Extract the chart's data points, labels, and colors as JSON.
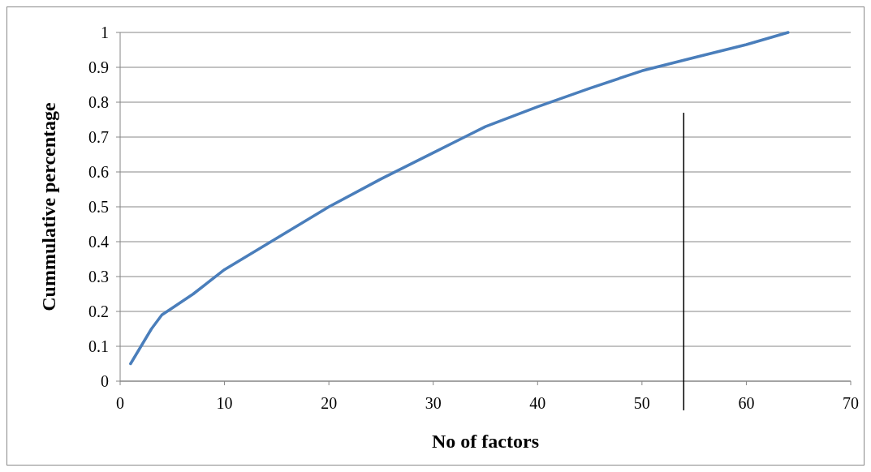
{
  "chart_data": {
    "type": "line",
    "xlabel": "No of factors",
    "ylabel": "Cummulative percentage",
    "series": [
      {
        "color": "#4a7ebb",
        "x": [
          1,
          2,
          3,
          4,
          5,
          7,
          10,
          15,
          20,
          25,
          30,
          33,
          35,
          40,
          45,
          50,
          55,
          60,
          64
        ],
        "values": [
          0.05,
          0.1,
          0.15,
          0.19,
          0.21,
          0.25,
          0.32,
          0.41,
          0.5,
          0.58,
          0.655,
          0.7,
          0.73,
          0.787,
          0.84,
          0.89,
          0.928,
          0.965,
          1.0
        ]
      }
    ],
    "xlim": [
      0,
      70
    ],
    "xticks": [
      0,
      10,
      20,
      30,
      40,
      50,
      60,
      70
    ],
    "ylim": [
      0,
      1
    ],
    "yticks": [
      0,
      0.1,
      0.2,
      0.3,
      0.4,
      0.5,
      0.6,
      0.7,
      0.8,
      0.9,
      1
    ],
    "grid": "y",
    "marker": "none",
    "line_style": "solid",
    "ref_lines": [
      {
        "axis": "x",
        "value": 54,
        "color": "#000000"
      }
    ]
  }
}
